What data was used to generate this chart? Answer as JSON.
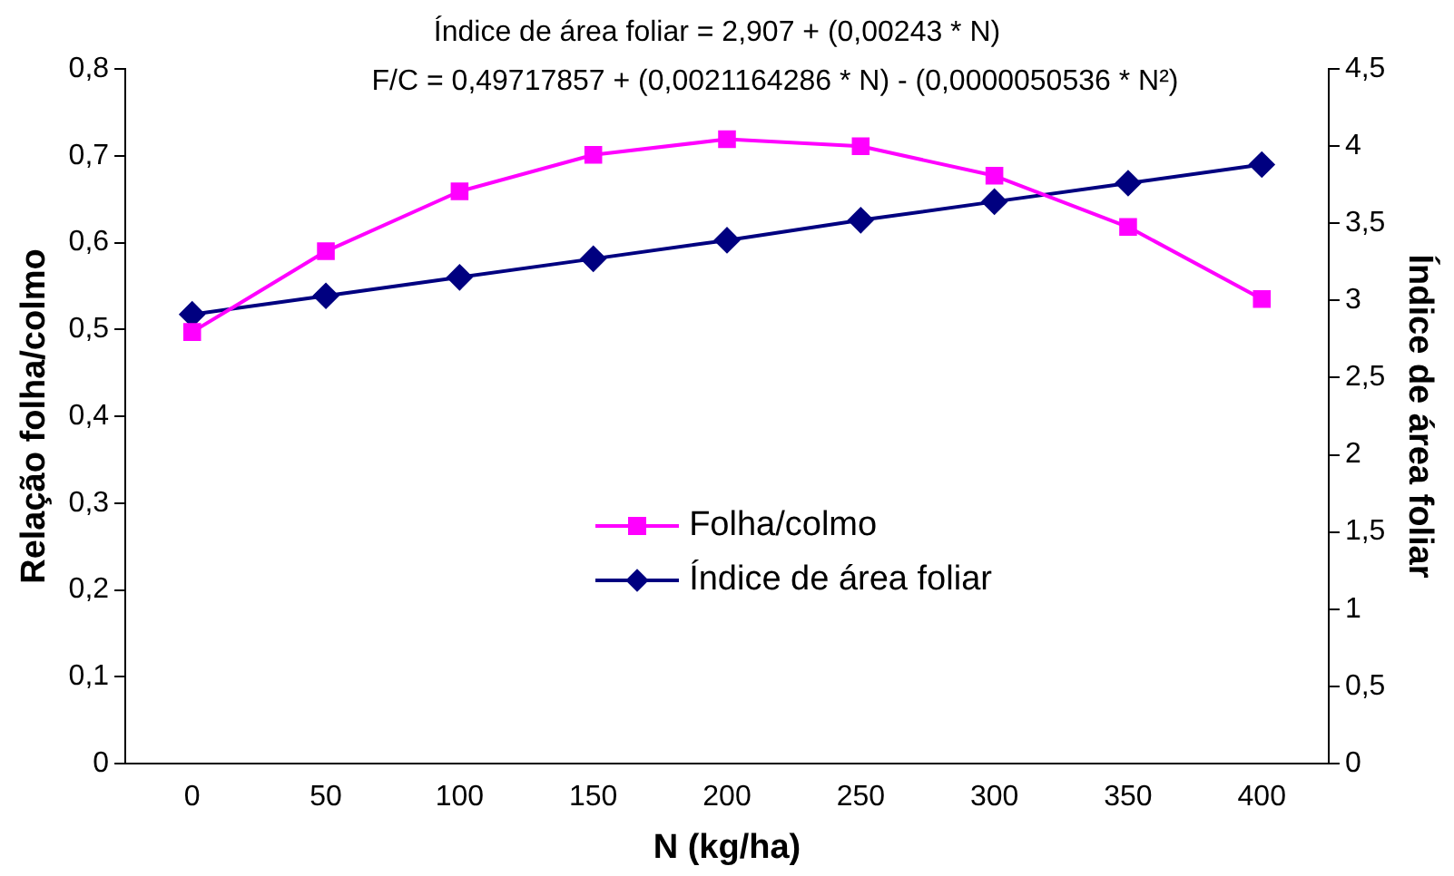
{
  "chart_data": {
    "type": "line",
    "xlabel": "N (kg/ha)",
    "ylabel": "Relação folha/colmo",
    "y2label": "Índice de área foliar",
    "annotations": [
      "Índice de área foliar = 2,907 + (0,00243 * N)",
      "F/C = 0,49717857 + (0,0021164286 * N) - (0,0000050536 * N²)"
    ],
    "categories": [
      "0",
      "50",
      "100",
      "150",
      "200",
      "250",
      "300",
      "350",
      "400"
    ],
    "series": [
      {
        "name": "Folha/colmo",
        "color": "#ff00ff",
        "marker": "square",
        "values": [
          0.497,
          0.59,
          0.659,
          0.701,
          0.719,
          0.711,
          0.677,
          0.618,
          0.535
        ]
      },
      {
        "name": "Índice de área foliar",
        "color": "#000080",
        "marker": "diamond",
        "axis": "y2",
        "values": [
          2.91,
          3.03,
          3.15,
          3.27,
          3.39,
          3.52,
          3.64,
          3.76,
          3.88
        ]
      }
    ],
    "ylim": [
      0,
      0.8
    ],
    "yticks": [
      0,
      {
        "value": 0.1,
        "label": "0,1"
      },
      {
        "value": 0.2,
        "label": "0,2"
      },
      {
        "value": 0.3,
        "label": "0,3"
      },
      {
        "value": 0.4,
        "label": "0,4"
      },
      {
        "value": 0.5,
        "label": "0,5"
      },
      {
        "value": 0.6,
        "label": "0,6"
      },
      {
        "value": 0.7,
        "label": "0,7"
      },
      {
        "value": 0.8,
        "label": "0,8"
      }
    ],
    "y2lim": [
      0,
      4.5
    ],
    "y2ticks": [
      0,
      {
        "value": 0.5,
        "label": "0,5"
      },
      1,
      {
        "value": 1.5,
        "label": "1,5"
      },
      2,
      {
        "value": 2.5,
        "label": "2,5"
      },
      3,
      {
        "value": 3.5,
        "label": "3,5"
      },
      4,
      {
        "value": 4.5,
        "label": "4,5"
      }
    ],
    "grid": false,
    "legend": "center",
    "line_style": "solid"
  }
}
